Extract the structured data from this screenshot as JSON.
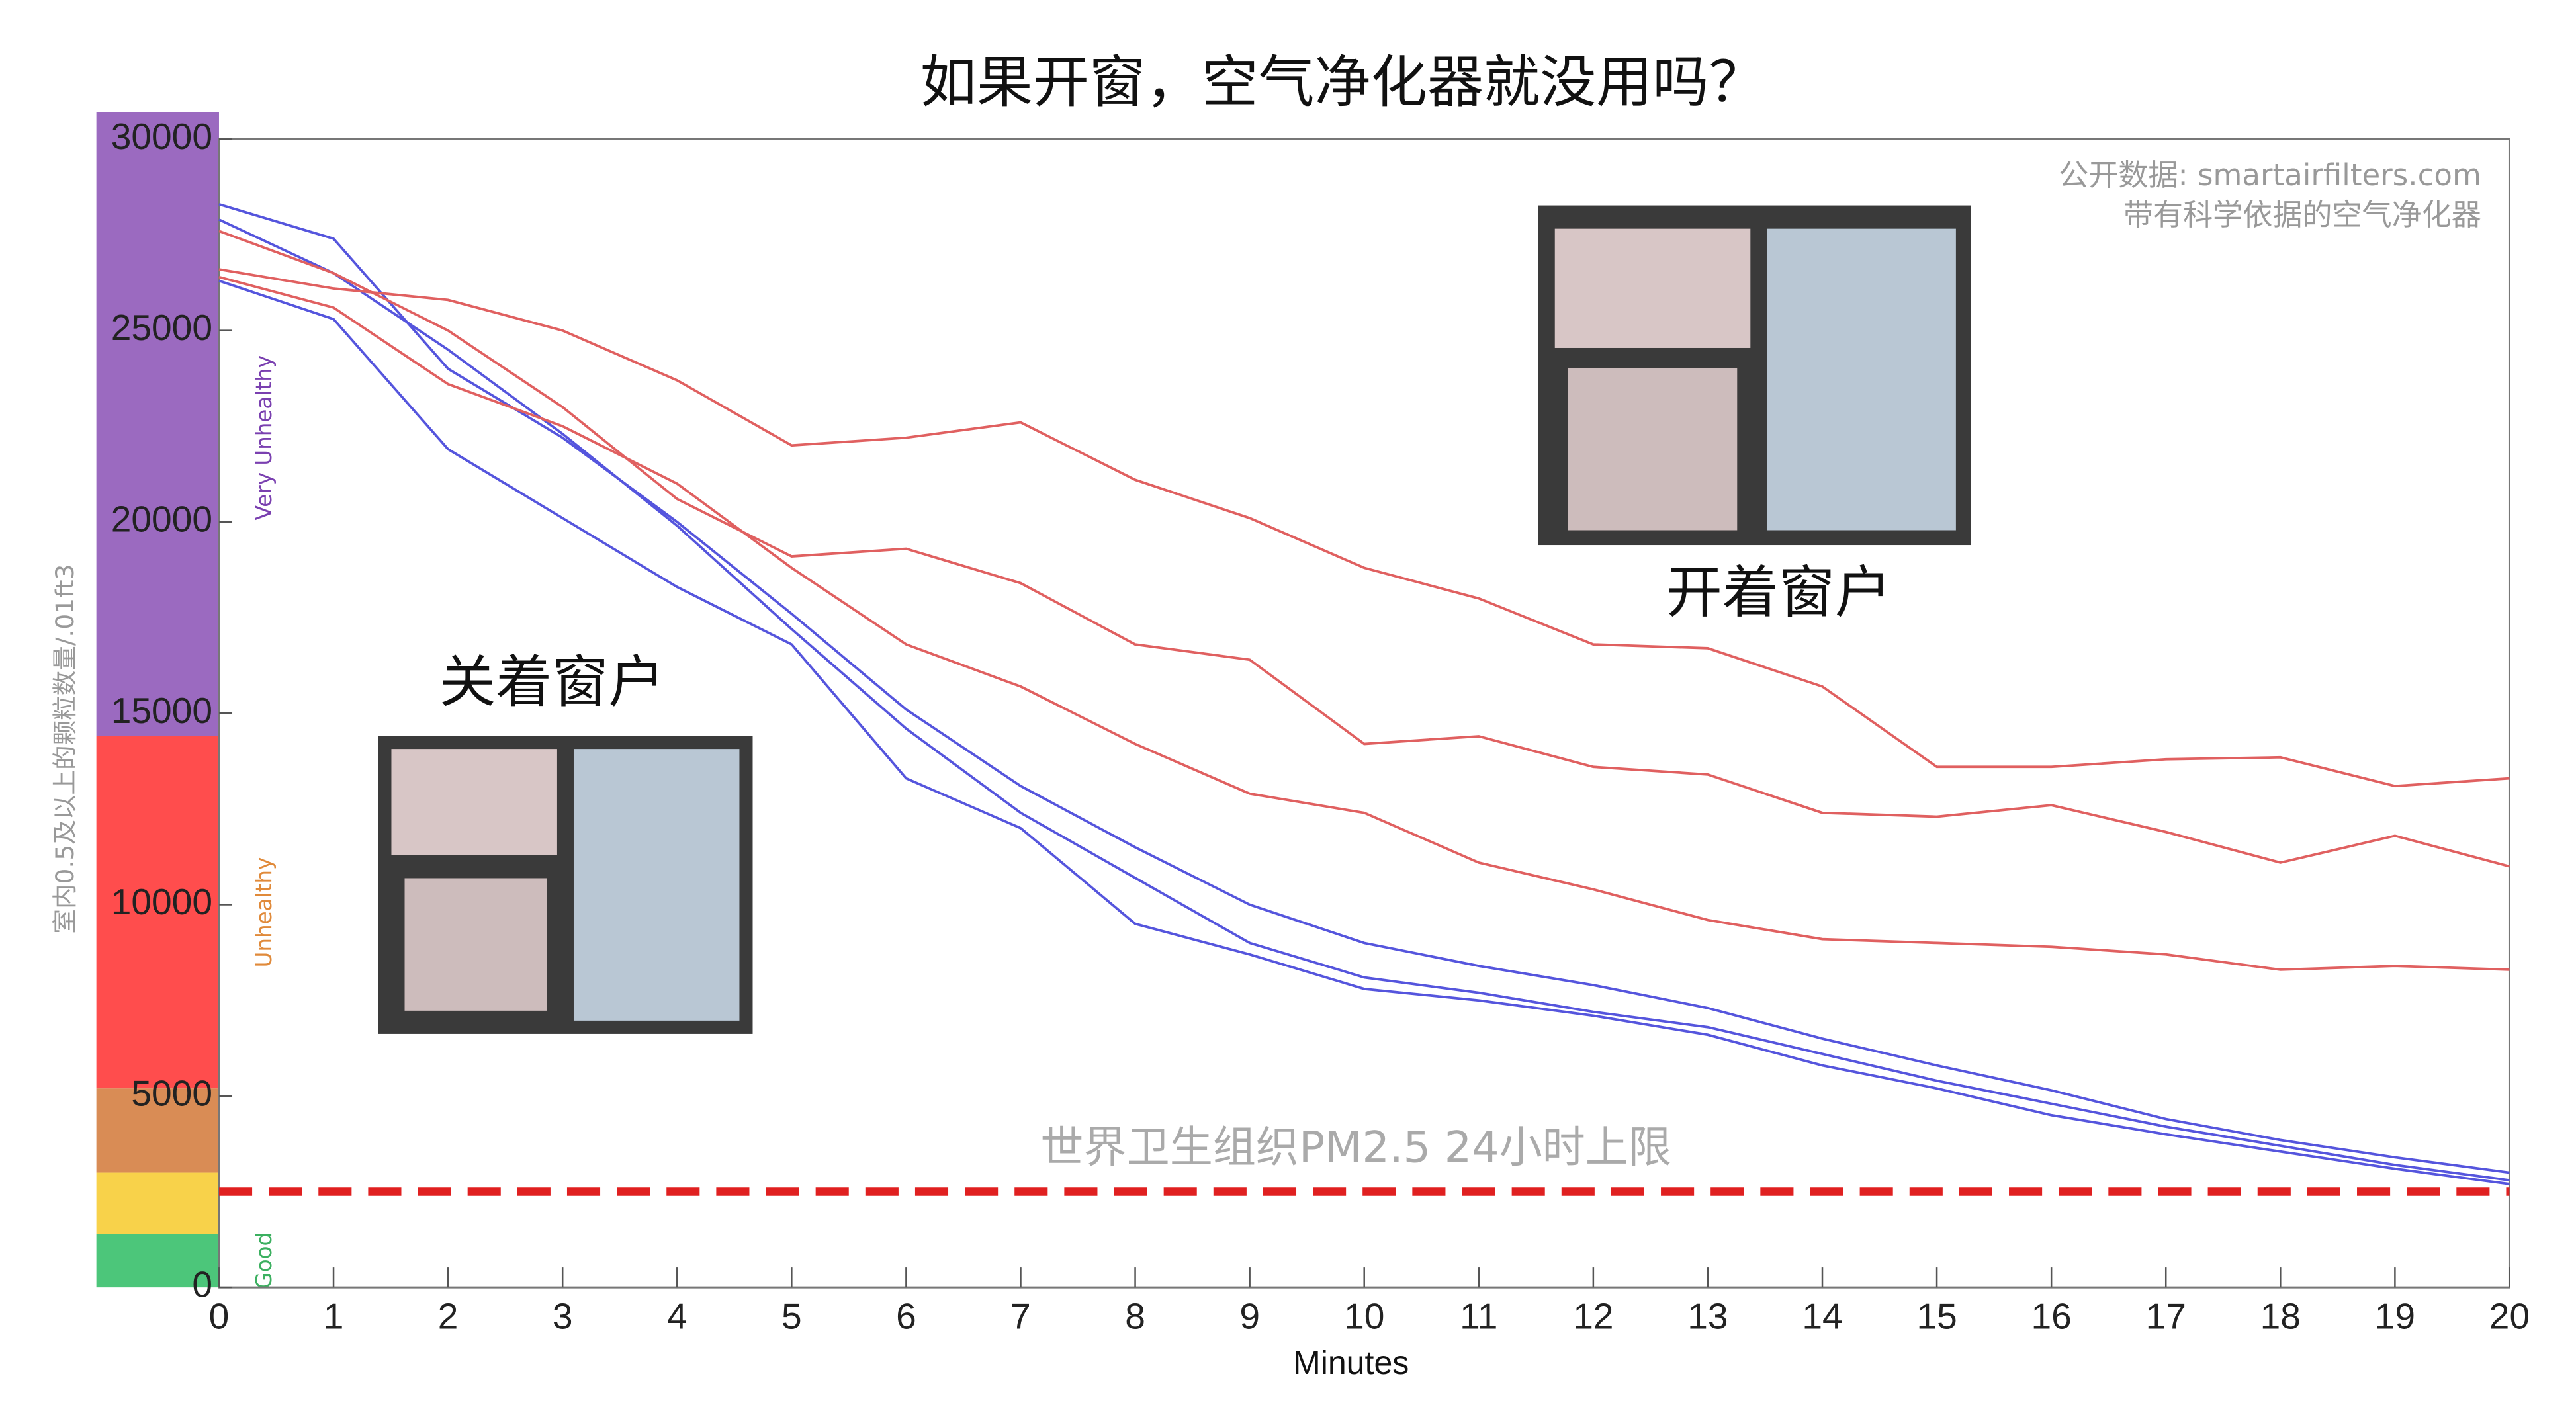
{
  "chart_data": {
    "type": "line",
    "title": "如果开窗，空气净化器就没用吗？",
    "source": [
      "公开数据: smartairfilters.com",
      "带有科学依据的空气净化器"
    ],
    "xlabel": "Minutes",
    "ylabel": "室内0.5及以上的颗粒数量/.01ft3",
    "x": [
      0,
      1,
      2,
      3,
      4,
      5,
      6,
      7,
      8,
      9,
      10,
      11,
      12,
      13,
      14,
      15,
      16,
      17,
      18,
      19,
      20
    ],
    "xlim": [
      0,
      20
    ],
    "xticks": [
      0,
      1,
      2,
      3,
      4,
      5,
      6,
      7,
      8,
      9,
      10,
      11,
      12,
      13,
      14,
      15,
      16,
      17,
      18,
      19,
      20
    ],
    "ylim": [
      0,
      30000
    ],
    "yticks": [
      0,
      5000,
      10000,
      15000,
      20000,
      25000,
      30000
    ],
    "series": [
      {
        "color": "#5555dd",
        "values": [
          28300,
          27400,
          24000,
          22200,
          20000,
          17600,
          15100,
          13100,
          11500,
          10000,
          9000,
          8400,
          7900,
          7300,
          6500,
          5800,
          5150,
          4400,
          3850,
          3400,
          3000
        ]
      },
      {
        "color": "#5555dd",
        "values": [
          27900,
          26500,
          24500,
          22300,
          19900,
          17200,
          14600,
          12400,
          10700,
          9000,
          8100,
          7700,
          7200,
          6800,
          6100,
          5400,
          4800,
          4200,
          3700,
          3200,
          2800
        ]
      },
      {
        "color": "#5555dd",
        "values": [
          26300,
          25300,
          21900,
          20100,
          18300,
          16800,
          13300,
          12000,
          9500,
          8700,
          7800,
          7500,
          7100,
          6600,
          5800,
          5200,
          4500,
          4000,
          3550,
          3100,
          2700
        ]
      },
      {
        "color": "#e06060",
        "values": [
          26600,
          26100,
          25800,
          25000,
          23700,
          22000,
          22200,
          22600,
          21100,
          20100,
          18800,
          18000,
          16800,
          16700,
          15700,
          13600,
          13600,
          13800,
          13850,
          13100,
          13300
        ]
      },
      {
        "color": "#e06060",
        "values": [
          27600,
          26500,
          25000,
          23000,
          20600,
          19100,
          19300,
          18400,
          16800,
          16400,
          14200,
          14400,
          13600,
          13400,
          12400,
          12300,
          12600,
          11900,
          11100,
          11800,
          11000
        ]
      },
      {
        "color": "#e06060",
        "values": [
          26400,
          25600,
          23600,
          22500,
          21000,
          18800,
          16800,
          15700,
          14200,
          12900,
          12400,
          11100,
          10400,
          9600,
          9100,
          9000,
          8900,
          8700,
          8300,
          8400,
          8300
        ]
      }
    ],
    "bands": [
      {
        "from": 0,
        "to": 1400,
        "color": "#4cc67a",
        "label": "Good",
        "label_color": "#3cb060"
      },
      {
        "from": 1400,
        "to": 3000,
        "color": "#f8d24a"
      },
      {
        "from": 3000,
        "to": 5200,
        "color": "#d98c55"
      },
      {
        "from": 5200,
        "to": 14400,
        "color": "#ff4d4d",
        "label": "Unhealthy",
        "label_color": "#e08a3a"
      },
      {
        "from": 14400,
        "to": 30700,
        "color": "#9b6ac0",
        "label": "Very Unhealthy",
        "label_color": "#7a40b0"
      }
    ],
    "reference": {
      "value": 2500,
      "label": "世界卫生组织PM2.5 24小时上限",
      "color": "#e02020"
    },
    "annotations": [
      "关着窗户",
      "开着窗户"
    ]
  }
}
